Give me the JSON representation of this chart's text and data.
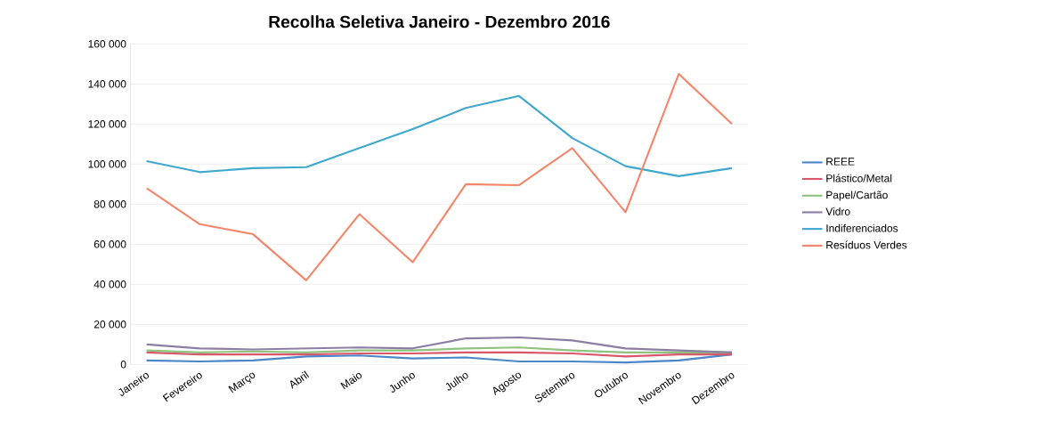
{
  "chart_data": {
    "type": "line",
    "title": "Recolha Seletiva Janeiro - Dezembro 2016",
    "categories": [
      "Janeiro",
      "Fevereiro",
      "Março",
      "Abril",
      "Maio",
      "Junho",
      "Julho",
      "Agosto",
      "Setembro",
      "Outubro",
      "Novembro",
      "Dezembro"
    ],
    "series": [
      {
        "name": "REEE",
        "color": "#4a86c8",
        "values": [
          2000,
          1500,
          2000,
          4000,
          4500,
          3000,
          3500,
          1500,
          1500,
          1000,
          2000,
          5000
        ]
      },
      {
        "name": "Plástico/Metal",
        "color": "#d9566b",
        "values": [
          6000,
          5000,
          5000,
          5000,
          5500,
          5500,
          6000,
          6000,
          5500,
          4000,
          5000,
          5000
        ]
      },
      {
        "name": "Papel/Cartão",
        "color": "#8fc17f",
        "values": [
          7000,
          6000,
          6500,
          6000,
          7000,
          7000,
          8000,
          8500,
          7000,
          6000,
          6000,
          6000
        ]
      },
      {
        "name": "Vidro",
        "color": "#8a7fa3",
        "values": [
          10000,
          8000,
          7500,
          8000,
          8500,
          8000,
          13000,
          13500,
          12000,
          8000,
          7000,
          6000
        ]
      },
      {
        "name": "Indiferenciados",
        "color": "#3fa8cf",
        "values": [
          101500,
          96000,
          98000,
          98500,
          108000,
          117500,
          128000,
          134000,
          113000,
          99000,
          94000,
          98000
        ]
      },
      {
        "name": "Resíduos Verdes",
        "color": "#f4876b",
        "values": [
          88000,
          70000,
          65000,
          42000,
          75000,
          51000,
          90000,
          89500,
          108000,
          76000,
          145000,
          120000
        ]
      }
    ],
    "ylim": [
      0,
      160000
    ],
    "yticks": [
      {
        "value": 0,
        "label": "0"
      },
      {
        "value": 20000,
        "label": "20 000"
      },
      {
        "value": 40000,
        "label": "40 000"
      },
      {
        "value": 60000,
        "label": "60 000"
      },
      {
        "value": 80000,
        "label": "80 000"
      },
      {
        "value": 100000,
        "label": "100 000"
      },
      {
        "value": 120000,
        "label": "120 000"
      },
      {
        "value": 140000,
        "label": "140 000"
      },
      {
        "value": 160000,
        "label": "160 000"
      }
    ],
    "grid": "y",
    "legend": "right",
    "marker": "none",
    "line_style": "solid"
  }
}
